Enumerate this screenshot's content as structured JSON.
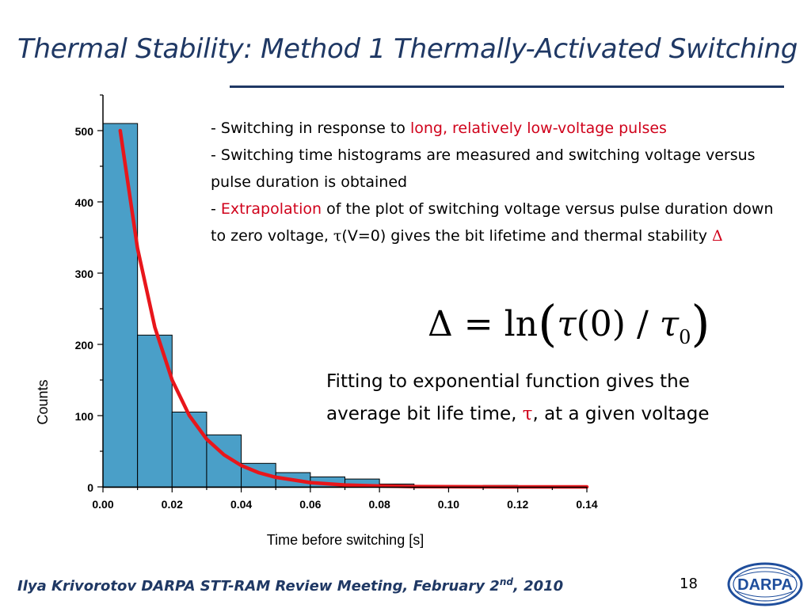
{
  "title": "Thermal Stability: Method 1 Thermally-Activated Switching",
  "bullets": {
    "b1_prefix": "- Switching in response to ",
    "b1_highlight": "long, relatively low-voltage pulses",
    "b2": "- Switching time histograms are measured and switching voltage versus pulse duration is obtained",
    "b3_prefix": "- ",
    "b3_highlight": "Extrapolation",
    "b3_mid": " of the plot of switching voltage versus pulse duration down to zero voltage, ",
    "b3_tau": "τ",
    "b3_mid2": "(V=0) gives the bit lifetime and thermal stability ",
    "b3_delta": "Δ"
  },
  "formula": {
    "delta": "Δ",
    "eq": "=",
    "ln": "ln",
    "tau": "τ",
    "arg": "(0)",
    "slash": "/",
    "tau0": "τ",
    "sub0": "0"
  },
  "fitting": {
    "prefix": "Fitting to exponential function gives the average bit life time, ",
    "tau": "τ",
    "suffix": ", at a given voltage"
  },
  "footer": {
    "text": "Ilya Krivorotov  DARPA STT-RAM Review Meeting, February 2",
    "sup": "nd",
    "year": ", 2010"
  },
  "page_number": "18",
  "logo_text": "DARPA",
  "colors": {
    "title": "#1f3864",
    "highlight": "#d0021b",
    "bar_fill": "#4a9fc8",
    "fit_line": "#e8161b"
  },
  "chart_data": {
    "type": "bar",
    "subtype": "histogram",
    "xlabel": "Time before switching [s]",
    "ylabel": "Counts",
    "xlim": [
      0.0,
      0.14
    ],
    "ylim": [
      0,
      550
    ],
    "x_ticks": [
      "0.00",
      "0.02",
      "0.04",
      "0.06",
      "0.08",
      "0.10",
      "0.12",
      "0.14"
    ],
    "y_ticks": [
      "0",
      "100",
      "200",
      "300",
      "400",
      "500"
    ],
    "bin_width": 0.01,
    "bins": [
      {
        "x0": 0.0,
        "x1": 0.01,
        "count": 510
      },
      {
        "x0": 0.01,
        "x1": 0.02,
        "count": 213
      },
      {
        "x0": 0.02,
        "x1": 0.03,
        "count": 105
      },
      {
        "x0": 0.03,
        "x1": 0.04,
        "count": 73
      },
      {
        "x0": 0.04,
        "x1": 0.05,
        "count": 33
      },
      {
        "x0": 0.05,
        "x1": 0.06,
        "count": 20
      },
      {
        "x0": 0.06,
        "x1": 0.07,
        "count": 14
      },
      {
        "x0": 0.07,
        "x1": 0.08,
        "count": 11
      },
      {
        "x0": 0.08,
        "x1": 0.09,
        "count": 4
      },
      {
        "x0": 0.09,
        "x1": 0.1,
        "count": 1
      },
      {
        "x0": 0.1,
        "x1": 0.11,
        "count": 1
      },
      {
        "x0": 0.11,
        "x1": 0.12,
        "count": 2
      },
      {
        "x0": 0.12,
        "x1": 0.13,
        "count": 1
      },
      {
        "x0": 0.13,
        "x1": 0.14,
        "count": 1
      }
    ],
    "fit": {
      "type": "exponential",
      "x": [
        0.005,
        0.01,
        0.015,
        0.02,
        0.025,
        0.03,
        0.035,
        0.04,
        0.045,
        0.05,
        0.06,
        0.07,
        0.08,
        0.09,
        0.1,
        0.11,
        0.12,
        0.14
      ],
      "y": [
        500,
        335,
        224,
        150,
        100,
        67,
        45,
        30,
        20,
        13.5,
        6,
        2.7,
        1.2,
        0.5,
        0.2,
        0.1,
        0.05,
        0
      ]
    },
    "grid": false
  }
}
